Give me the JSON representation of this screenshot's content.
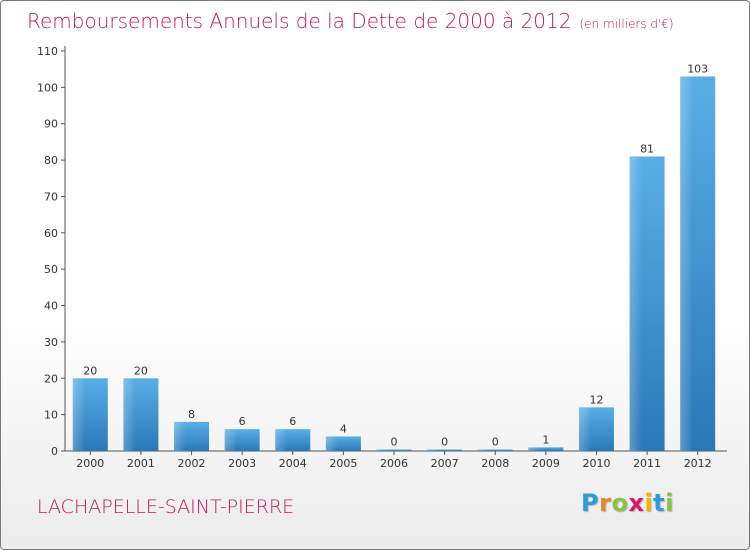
{
  "header": {
    "title": "Remboursements Annuels de la Dette de 2000 à 2012",
    "subtitle": "(en milliers d'€)"
  },
  "footer": {
    "commune": "LACHAPELLE-SAINT-PIERRE",
    "logo_letters": [
      "P",
      "r",
      "o",
      "x",
      "i",
      "t",
      "i"
    ],
    "logo_colors": [
      "#2e9bd6",
      "#e8852b",
      "#8bc34a",
      "#d81b60",
      "#f4b400",
      "#2e9bd6",
      "#8bc34a"
    ]
  },
  "chart_data": {
    "type": "bar",
    "title": "Remboursements Annuels de la Dette de 2000 à 2012",
    "xlabel": "",
    "ylabel": "",
    "categories": [
      "2000",
      "2001",
      "2002",
      "2003",
      "2004",
      "2005",
      "2006",
      "2007",
      "2008",
      "2009",
      "2010",
      "2011",
      "2012"
    ],
    "values": [
      20,
      20,
      8,
      6,
      6,
      4,
      0,
      0,
      0,
      1,
      12,
      81,
      103
    ],
    "ylim": [
      0,
      110
    ],
    "yticks": [
      0,
      10,
      20,
      30,
      40,
      50,
      60,
      70,
      80,
      90,
      100,
      110
    ],
    "grid": false,
    "bar_color": "#3a8fd0"
  }
}
